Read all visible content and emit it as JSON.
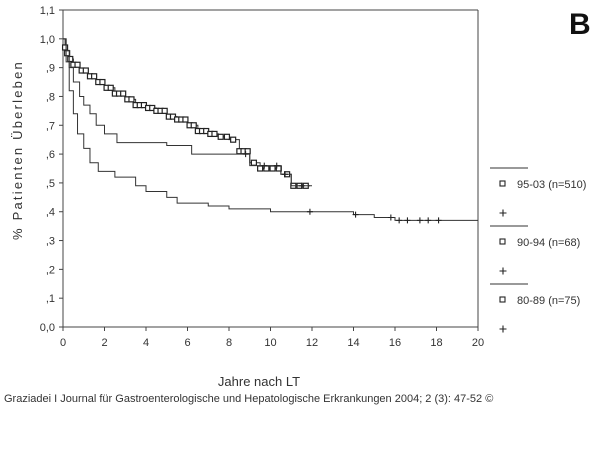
{
  "citation": "Graziadei I Journal für Gastroenterologische und Hepatologische Erkrankungen 2004; 2 (3): 47-52 ©",
  "chart_data": {
    "type": "line",
    "panel_label": "B",
    "xlabel": "Jahre nach LT",
    "ylabel": "% Patienten Überleben",
    "xlim": [
      0,
      20
    ],
    "ylim": [
      0.0,
      1.1
    ],
    "x_ticks": [
      0,
      2,
      4,
      6,
      8,
      10,
      12,
      14,
      16,
      18,
      20
    ],
    "y_ticks": [
      {
        "value": 0.0,
        "label": "0,0"
      },
      {
        "value": 0.1,
        "label": ",1"
      },
      {
        "value": 0.2,
        "label": ",2"
      },
      {
        "value": 0.3,
        "label": ",3"
      },
      {
        "value": 0.4,
        "label": ",4"
      },
      {
        "value": 0.5,
        "label": ",5"
      },
      {
        "value": 0.6,
        "label": ",6"
      },
      {
        "value": 0.7,
        "label": ",7"
      },
      {
        "value": 0.8,
        "label": ",8"
      },
      {
        "value": 0.9,
        "label": ",9"
      },
      {
        "value": 1.0,
        "label": "1,0"
      },
      {
        "value": 1.1,
        "label": "1,1"
      }
    ],
    "grid": false,
    "legend_position": "right",
    "series": [
      {
        "name": "95-03 (n=510)",
        "marker": "square",
        "points": [
          [
            0,
            1.0
          ],
          [
            0.1,
            0.97
          ],
          [
            0.2,
            0.95
          ],
          [
            0.3,
            0.93
          ],
          [
            0.5,
            0.91
          ],
          [
            0.8,
            0.89
          ],
          [
            1.2,
            0.87
          ],
          [
            1.6,
            0.85
          ],
          [
            2.0,
            0.83
          ],
          [
            2.5,
            0.81
          ],
          [
            3.0,
            0.79
          ],
          [
            3.5,
            0.77
          ],
          [
            4.0,
            0.76
          ],
          [
            4.5,
            0.75
          ],
          [
            5.0,
            0.73
          ],
          [
            5.5,
            0.72
          ],
          [
            6.0,
            0.7
          ],
          [
            6.5,
            0.68
          ],
          [
            7.0,
            0.67
          ],
          [
            7.5,
            0.66
          ],
          [
            8.0,
            0.65
          ],
          [
            8.5,
            0.61
          ],
          [
            9.0,
            0.57
          ],
          [
            9.5,
            0.55
          ],
          [
            10.5,
            0.53
          ],
          [
            11.0,
            0.49
          ],
          [
            11.9,
            0.49
          ]
        ],
        "censor_marks": [
          0.1,
          0.2,
          0.35,
          0.5,
          0.7,
          0.9,
          1.1,
          1.3,
          1.5,
          1.7,
          1.9,
          2.1,
          2.3,
          2.5,
          2.7,
          2.9,
          3.1,
          3.3,
          3.5,
          3.7,
          3.9,
          4.1,
          4.3,
          4.5,
          4.7,
          4.9,
          5.1,
          5.3,
          5.5,
          5.7,
          5.9,
          6.1,
          6.3,
          6.5,
          6.7,
          6.9,
          7.1,
          7.3,
          7.6,
          7.9,
          8.2,
          8.5,
          8.7,
          8.9,
          9.2,
          9.5,
          9.8,
          10.1,
          10.4,
          10.8,
          11.1,
          11.4,
          11.7
        ]
      },
      {
        "name": "90-94 (n=68)",
        "marker": "plus",
        "points": [
          [
            0,
            1.0
          ],
          [
            0.15,
            0.96
          ],
          [
            0.3,
            0.9
          ],
          [
            0.5,
            0.85
          ],
          [
            0.8,
            0.8
          ],
          [
            1.0,
            0.77
          ],
          [
            1.3,
            0.74
          ],
          [
            1.6,
            0.7
          ],
          [
            2.0,
            0.67
          ],
          [
            2.6,
            0.64
          ],
          [
            3.5,
            0.64
          ],
          [
            5.0,
            0.63
          ],
          [
            6.2,
            0.6
          ],
          [
            8.6,
            0.6
          ],
          [
            9.0,
            0.56
          ],
          [
            10.0,
            0.56
          ],
          [
            10.5,
            0.53
          ],
          [
            11.0,
            0.49
          ],
          [
            12.0,
            0.49
          ]
        ],
        "censor_marks": [
          8.8,
          9.7,
          10.3,
          10.7,
          11.5
        ]
      },
      {
        "name": "80-89 (n=75)",
        "marker": "plus",
        "points": [
          [
            0,
            1.0
          ],
          [
            0.15,
            0.92
          ],
          [
            0.3,
            0.82
          ],
          [
            0.5,
            0.74
          ],
          [
            0.7,
            0.67
          ],
          [
            1.0,
            0.62
          ],
          [
            1.3,
            0.57
          ],
          [
            1.7,
            0.54
          ],
          [
            2.5,
            0.52
          ],
          [
            3.5,
            0.49
          ],
          [
            4.0,
            0.47
          ],
          [
            5.0,
            0.45
          ],
          [
            5.5,
            0.43
          ],
          [
            6.5,
            0.43
          ],
          [
            7.0,
            0.42
          ],
          [
            8.0,
            0.41
          ],
          [
            10.0,
            0.4
          ],
          [
            12.0,
            0.4
          ],
          [
            14.0,
            0.39
          ],
          [
            15.0,
            0.38
          ],
          [
            16.0,
            0.37
          ],
          [
            20.0,
            0.37
          ]
        ],
        "censor_marks": [
          11.9,
          14.1,
          15.8,
          16.2,
          16.6,
          17.2,
          17.6,
          18.1
        ]
      }
    ]
  }
}
